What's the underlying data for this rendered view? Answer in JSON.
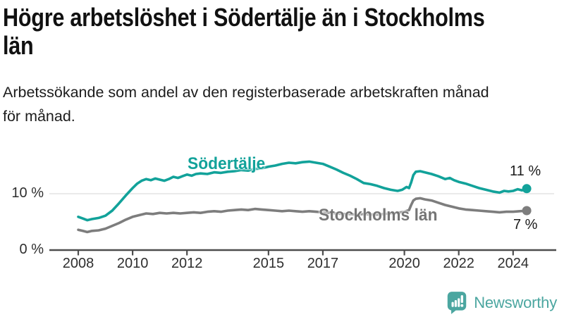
{
  "header": {
    "title_line1": "Högre arbetslöshet i Södertälje än i Stockholms",
    "title_line2": "län",
    "subtitle_line1": "Arbetssökande som andel av den registerbaserade arbetskraften månad",
    "subtitle_line2": "för månad."
  },
  "colors": {
    "axis": "#4d4d4d",
    "gridline": "#e4e4e4",
    "title": "#111111",
    "accent_teal": "#12A29A",
    "series_gray": "#7d7d7d",
    "logo_teal": "#4BA6A0"
  },
  "chart_data": {
    "type": "line",
    "title": "Högre arbetslöshet i Södertälje än i Stockholms län",
    "subtitle": "Arbetssökande som andel av den registerbaserade arbetskraften månad för månad.",
    "unit": "%",
    "grid": "horizontal line at 10% only",
    "legend_position": "inline-labels-on-lines",
    "x_axis": {
      "ticks": [
        2008,
        2010,
        2012,
        2015,
        2017,
        2020,
        2022,
        2024
      ],
      "range": [
        2007.9,
        2024.8
      ]
    },
    "y_axis": {
      "ticks": [
        {
          "value": 0,
          "label": "0 %"
        },
        {
          "value": 10,
          "label": "10 %"
        }
      ],
      "range": [
        0,
        17
      ]
    },
    "series": [
      {
        "name": "Södertälje",
        "color": "#12A29A",
        "end_label": "11 %",
        "points": [
          [
            2008.0,
            5.9
          ],
          [
            2008.17,
            5.6
          ],
          [
            2008.33,
            5.3
          ],
          [
            2008.5,
            5.5
          ],
          [
            2008.75,
            5.7
          ],
          [
            2009.0,
            6.1
          ],
          [
            2009.25,
            7.0
          ],
          [
            2009.5,
            8.3
          ],
          [
            2009.75,
            9.7
          ],
          [
            2010.0,
            11.0
          ],
          [
            2010.17,
            11.8
          ],
          [
            2010.33,
            12.3
          ],
          [
            2010.5,
            12.6
          ],
          [
            2010.67,
            12.4
          ],
          [
            2010.83,
            12.7
          ],
          [
            2011.0,
            12.5
          ],
          [
            2011.17,
            12.3
          ],
          [
            2011.33,
            12.6
          ],
          [
            2011.5,
            13.0
          ],
          [
            2011.67,
            12.8
          ],
          [
            2011.83,
            13.1
          ],
          [
            2012.0,
            13.4
          ],
          [
            2012.17,
            13.2
          ],
          [
            2012.33,
            13.5
          ],
          [
            2012.5,
            13.6
          ],
          [
            2012.75,
            13.5
          ],
          [
            2013.0,
            13.8
          ],
          [
            2013.25,
            13.7
          ],
          [
            2013.5,
            13.9
          ],
          [
            2013.75,
            14.0
          ],
          [
            2014.0,
            14.2
          ],
          [
            2014.25,
            14.1
          ],
          [
            2014.5,
            14.4
          ],
          [
            2014.75,
            14.5
          ],
          [
            2015.0,
            14.8
          ],
          [
            2015.25,
            15.0
          ],
          [
            2015.5,
            15.3
          ],
          [
            2015.75,
            15.5
          ],
          [
            2016.0,
            15.4
          ],
          [
            2016.25,
            15.6
          ],
          [
            2016.5,
            15.7
          ],
          [
            2016.75,
            15.5
          ],
          [
            2017.0,
            15.3
          ],
          [
            2017.25,
            14.8
          ],
          [
            2017.5,
            14.3
          ],
          [
            2017.75,
            13.7
          ],
          [
            2018.0,
            13.2
          ],
          [
            2018.25,
            12.6
          ],
          [
            2018.5,
            11.9
          ],
          [
            2018.75,
            11.7
          ],
          [
            2019.0,
            11.4
          ],
          [
            2019.25,
            11.0
          ],
          [
            2019.5,
            10.7
          ],
          [
            2019.75,
            10.5
          ],
          [
            2019.92,
            10.7
          ],
          [
            2020.08,
            11.2
          ],
          [
            2020.17,
            11.0
          ],
          [
            2020.25,
            12.0
          ],
          [
            2020.33,
            13.3
          ],
          [
            2020.42,
            13.9
          ],
          [
            2020.58,
            14.0
          ],
          [
            2020.75,
            13.8
          ],
          [
            2021.0,
            13.5
          ],
          [
            2021.25,
            13.1
          ],
          [
            2021.5,
            12.6
          ],
          [
            2021.67,
            12.8
          ],
          [
            2021.83,
            12.4
          ],
          [
            2022.0,
            12.1
          ],
          [
            2022.25,
            11.8
          ],
          [
            2022.5,
            11.4
          ],
          [
            2022.75,
            11.0
          ],
          [
            2023.0,
            10.7
          ],
          [
            2023.25,
            10.4
          ],
          [
            2023.5,
            10.2
          ],
          [
            2023.67,
            10.5
          ],
          [
            2023.83,
            10.4
          ],
          [
            2024.0,
            10.5
          ],
          [
            2024.17,
            10.8
          ],
          [
            2024.33,
            10.6
          ],
          [
            2024.5,
            10.9
          ]
        ]
      },
      {
        "name": "Stockholms län",
        "color": "#7d7d7d",
        "end_label": "7 %",
        "points": [
          [
            2008.0,
            3.6
          ],
          [
            2008.17,
            3.4
          ],
          [
            2008.33,
            3.2
          ],
          [
            2008.5,
            3.4
          ],
          [
            2008.75,
            3.5
          ],
          [
            2009.0,
            3.8
          ],
          [
            2009.25,
            4.3
          ],
          [
            2009.5,
            4.8
          ],
          [
            2009.75,
            5.4
          ],
          [
            2010.0,
            5.9
          ],
          [
            2010.25,
            6.2
          ],
          [
            2010.5,
            6.5
          ],
          [
            2010.75,
            6.4
          ],
          [
            2011.0,
            6.6
          ],
          [
            2011.25,
            6.5
          ],
          [
            2011.5,
            6.6
          ],
          [
            2011.75,
            6.5
          ],
          [
            2012.0,
            6.6
          ],
          [
            2012.25,
            6.7
          ],
          [
            2012.5,
            6.6
          ],
          [
            2012.75,
            6.8
          ],
          [
            2013.0,
            6.9
          ],
          [
            2013.25,
            6.8
          ],
          [
            2013.5,
            7.0
          ],
          [
            2013.75,
            7.1
          ],
          [
            2014.0,
            7.2
          ],
          [
            2014.25,
            7.1
          ],
          [
            2014.5,
            7.3
          ],
          [
            2014.75,
            7.2
          ],
          [
            2015.0,
            7.1
          ],
          [
            2015.25,
            7.0
          ],
          [
            2015.5,
            6.9
          ],
          [
            2015.75,
            7.0
          ],
          [
            2016.0,
            6.9
          ],
          [
            2016.25,
            6.8
          ],
          [
            2016.5,
            6.9
          ],
          [
            2016.75,
            6.8
          ],
          [
            2017.0,
            6.7
          ],
          [
            2017.25,
            6.6
          ],
          [
            2017.5,
            6.5
          ],
          [
            2017.75,
            6.4
          ],
          [
            2018.0,
            6.4
          ],
          [
            2018.25,
            6.3
          ],
          [
            2018.5,
            6.4
          ],
          [
            2018.75,
            6.3
          ],
          [
            2019.0,
            6.3
          ],
          [
            2019.25,
            6.4
          ],
          [
            2019.5,
            6.5
          ],
          [
            2019.75,
            6.6
          ],
          [
            2020.0,
            6.8
          ],
          [
            2020.17,
            7.1
          ],
          [
            2020.25,
            8.0
          ],
          [
            2020.33,
            8.8
          ],
          [
            2020.42,
            9.1
          ],
          [
            2020.58,
            9.2
          ],
          [
            2020.75,
            9.0
          ],
          [
            2021.0,
            8.8
          ],
          [
            2021.25,
            8.4
          ],
          [
            2021.5,
            8.0
          ],
          [
            2021.75,
            7.7
          ],
          [
            2022.0,
            7.4
          ],
          [
            2022.25,
            7.2
          ],
          [
            2022.5,
            7.1
          ],
          [
            2022.75,
            7.0
          ],
          [
            2023.0,
            6.9
          ],
          [
            2023.25,
            6.8
          ],
          [
            2023.5,
            6.7
          ],
          [
            2023.75,
            6.8
          ],
          [
            2024.0,
            6.8
          ],
          [
            2024.25,
            6.9
          ],
          [
            2024.5,
            7.0
          ]
        ]
      }
    ]
  },
  "branding": {
    "logo_text": "Newsworthy"
  }
}
